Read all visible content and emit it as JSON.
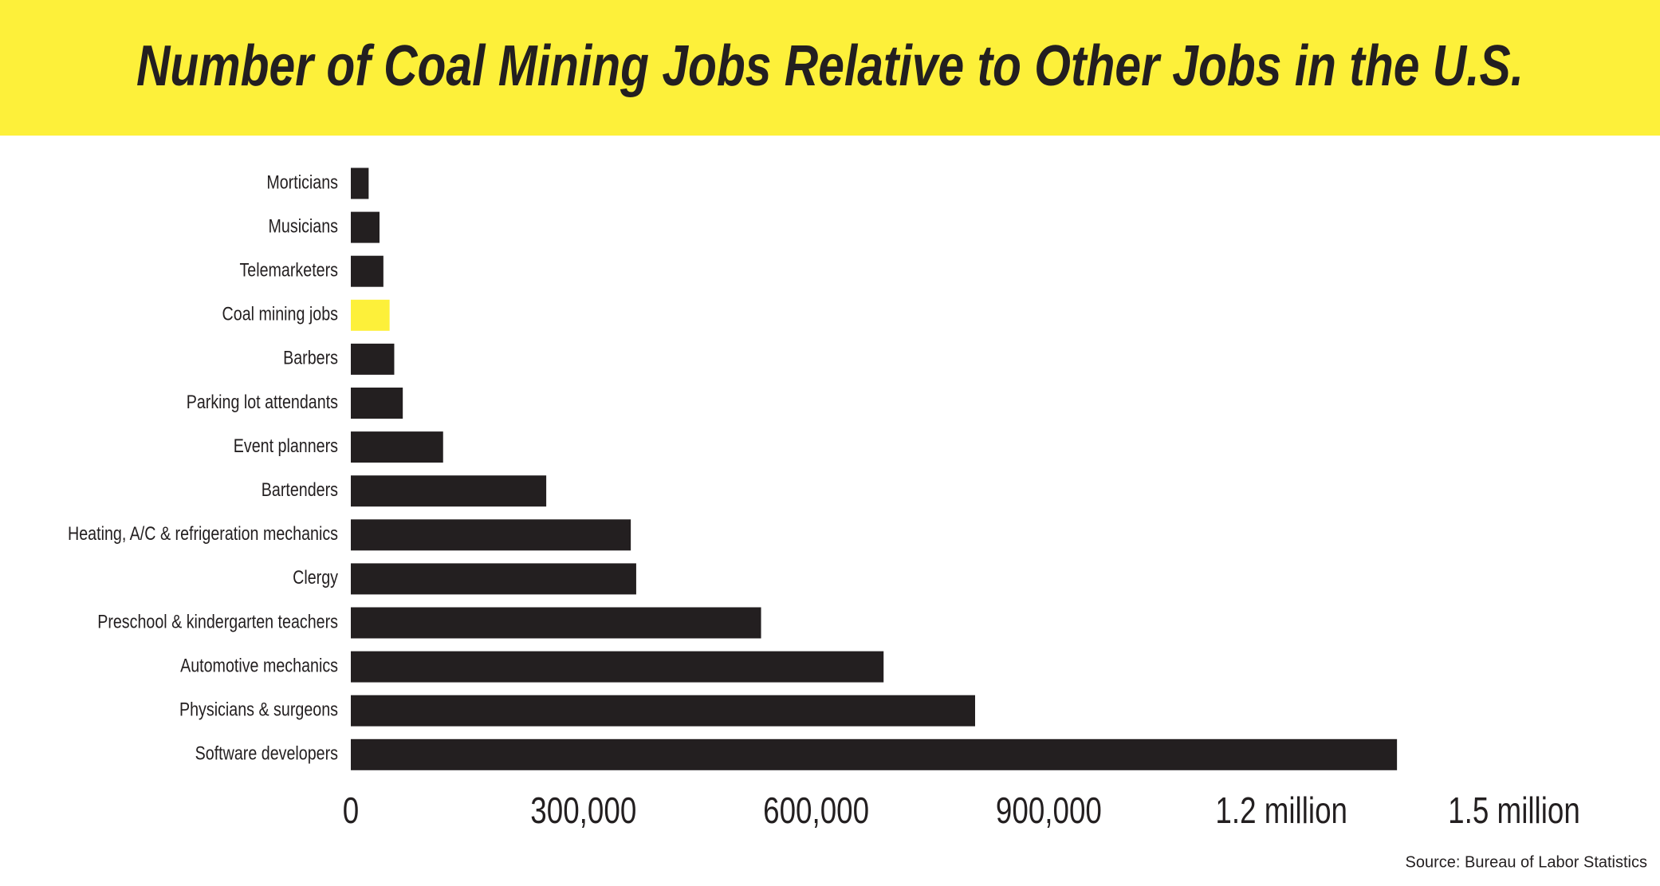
{
  "chart_data": {
    "type": "hbar",
    "title": "Number of Coal Mining Jobs Relative to Other Jobs in the U.S.",
    "source": "Source: Bureau of Labor Statistics",
    "categories": [
      "Morticians",
      "Musicians",
      "Telemarketers",
      "Coal mining jobs",
      "Barbers",
      "Parking lot attendants",
      "Event planners",
      "Bartenders",
      "Heating, A/C & refrigeration mechanics",
      "Clergy",
      "Preschool & kindergarten teachers",
      "Automotive mechanics",
      "Physicians & surgeons",
      "Software developers"
    ],
    "values": [
      23000,
      37000,
      42000,
      50000,
      56000,
      67000,
      119000,
      252000,
      361000,
      368000,
      529000,
      687000,
      805000,
      1349000
    ],
    "colors": [
      "#231f20",
      "#231f20",
      "#231f20",
      "#fdf03a",
      "#231f20",
      "#231f20",
      "#231f20",
      "#231f20",
      "#231f20",
      "#231f20",
      "#231f20",
      "#231f20",
      "#231f20",
      "#231f20"
    ],
    "xlim": [
      0,
      1500000
    ],
    "xticks": [
      0,
      {
        "value": 300000,
        "label": "300,000"
      },
      {
        "value": 600000,
        "label": "600,000"
      },
      {
        "value": 900000,
        "label": "900,000"
      },
      {
        "value": 1200000,
        "label": "1.2 million"
      },
      {
        "value": 1500000,
        "label": "1.5 million"
      }
    ],
    "grid": false,
    "banner_color": "#fdf03a"
  }
}
